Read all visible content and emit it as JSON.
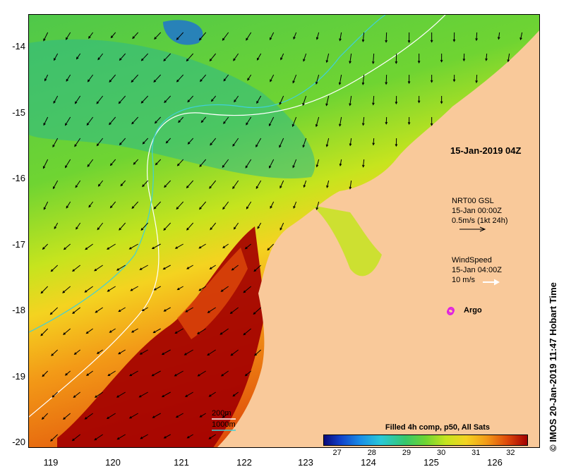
{
  "map": {
    "title": "15-Jan-2019 04Z",
    "lat_ticks": [
      "-14",
      "-15",
      "-16",
      "-17",
      "-18",
      "-19",
      "-20"
    ],
    "lon_ticks": [
      "119",
      "120",
      "121",
      "122",
      "123",
      "124",
      "125",
      "126"
    ],
    "lat_range": [
      -20.1,
      -13.55
    ],
    "lon_range": [
      118.6,
      126.8
    ],
    "current_legend": {
      "line1": "NRT00 GSL",
      "line2": "15-Jan 00:00Z",
      "line3": "0.5m/s (1kt 24h)"
    },
    "wind_legend": {
      "line1": "WindSpeed",
      "line2": "15-Jan 04:00Z",
      "line3": "10 m/s"
    },
    "argo_label": "Argo",
    "depth_legend": {
      "line1": "200m",
      "line2": "1000m"
    },
    "colorbar": {
      "title": "Filled 4h comp, p50, All Sats",
      "ticks": [
        "27",
        "28",
        "29",
        "30",
        "31",
        "32"
      ],
      "range": [
        26.6,
        32.5
      ]
    },
    "credit": "© IMOS 20-Jan-2019 11:47 Hobart Time",
    "colors": {
      "land": "#f9c99a",
      "warm": "#a30000",
      "cool": "#2bb86a",
      "isobath_200": "#ffffff",
      "isobath_1000": "#40d0d8",
      "argo": "#e020e0"
    }
  }
}
